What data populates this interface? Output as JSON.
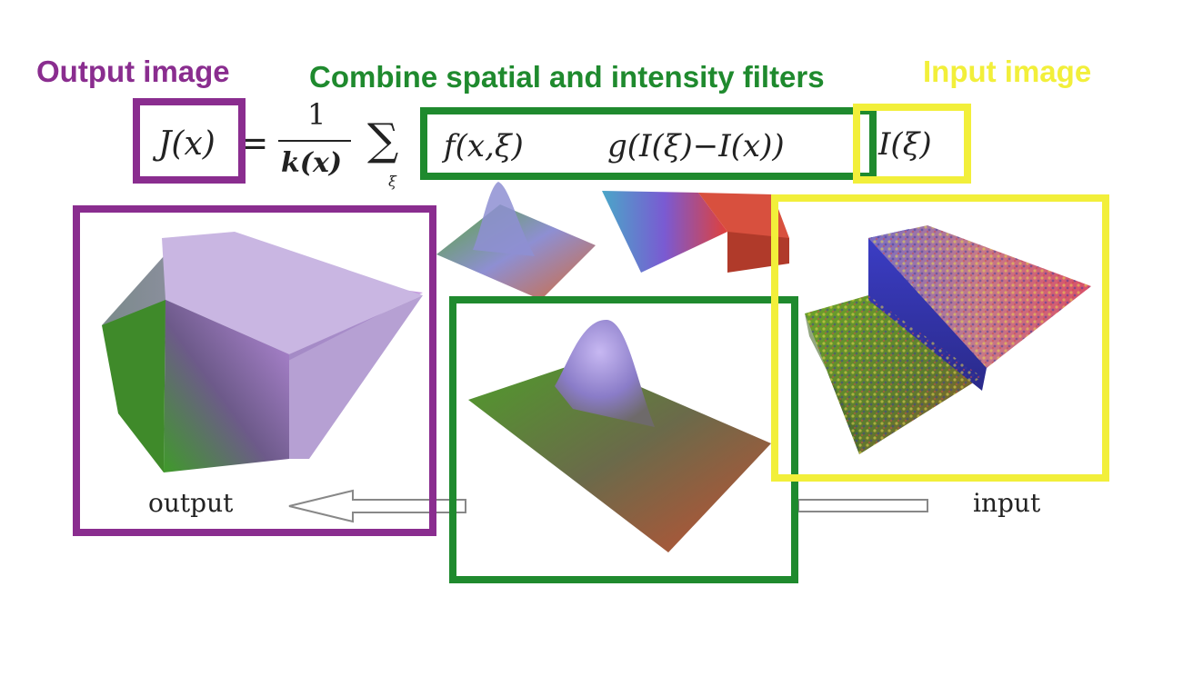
{
  "headings": {
    "output": "Output image",
    "combine": "Combine spatial and intensity filters",
    "input": "Input image"
  },
  "formula": {
    "lhs": "J(x)",
    "equals": "=",
    "numerator": "1",
    "denominator": "k(x)",
    "sum_symbol": "∑",
    "sum_index": "ξ",
    "spatial_filter": "f(x,ξ)",
    "intensity_filter": "g(I(ξ)−I(x))",
    "input_term": "I(ξ)"
  },
  "captions": {
    "output": "output",
    "input": "input"
  },
  "colors": {
    "output": "#8a2d8f",
    "combine": "#1f8a2e",
    "input": "#f2ef3a"
  }
}
